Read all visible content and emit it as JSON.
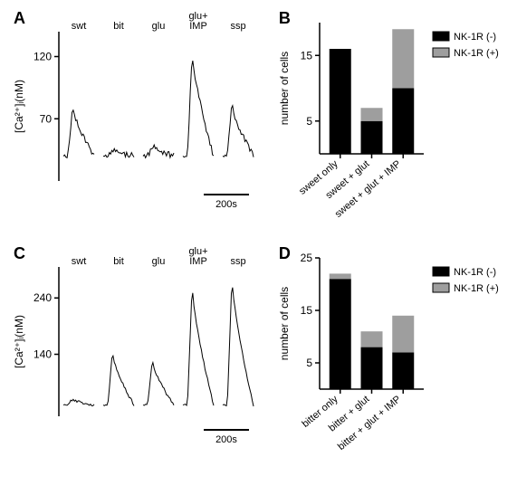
{
  "panelA": {
    "label": "A",
    "ylabel": "[Ca²⁺]ᵢ(nM)",
    "yticks": [
      70,
      120
    ],
    "stimuli": [
      "swt",
      "bit",
      "glu",
      "glu+\nIMP",
      "ssp"
    ],
    "peaks": [
      80,
      45,
      48,
      125,
      82
    ],
    "baseline": 40,
    "scalebar_label": "200s",
    "axis_color": "#000000",
    "trace_color": "#000000"
  },
  "panelB": {
    "label": "B",
    "ylabel": "number of cells",
    "yticks": [
      5,
      15
    ],
    "ymax": 20,
    "categories": [
      "sweet only",
      "sweet + glut",
      "sweet + glut + IMP"
    ],
    "nk1r_neg": [
      16,
      5,
      10
    ],
    "nk1r_pos": [
      0,
      2,
      9
    ],
    "colors": {
      "neg": "#000000",
      "pos": "#9e9e9e"
    },
    "legend": {
      "neg": "NK-1R (-)",
      "pos": "NK-1R (+)"
    }
  },
  "panelC": {
    "label": "C",
    "ylabel": "[Ca²⁺]ᵢ(nM)",
    "yticks": [
      140,
      240
    ],
    "stimuli": [
      "swt",
      "bit",
      "glu",
      "glu+\nIMP",
      "ssp"
    ],
    "peaks": [
      60,
      145,
      130,
      265,
      280
    ],
    "baseline": 50,
    "scalebar_label": "200s",
    "axis_color": "#000000",
    "trace_color": "#000000"
  },
  "panelD": {
    "label": "D",
    "ylabel": "number of cells",
    "yticks": [
      5,
      15,
      25
    ],
    "ymax": 25,
    "categories": [
      "bitter only",
      "bitter + glut",
      "bitter + glut + IMP"
    ],
    "nk1r_neg": [
      21,
      8,
      7
    ],
    "nk1r_pos": [
      1,
      3,
      7
    ],
    "colors": {
      "neg": "#000000",
      "pos": "#9e9e9e"
    },
    "legend": {
      "neg": "NK-1R (-)",
      "pos": "NK-1R (+)"
    }
  }
}
